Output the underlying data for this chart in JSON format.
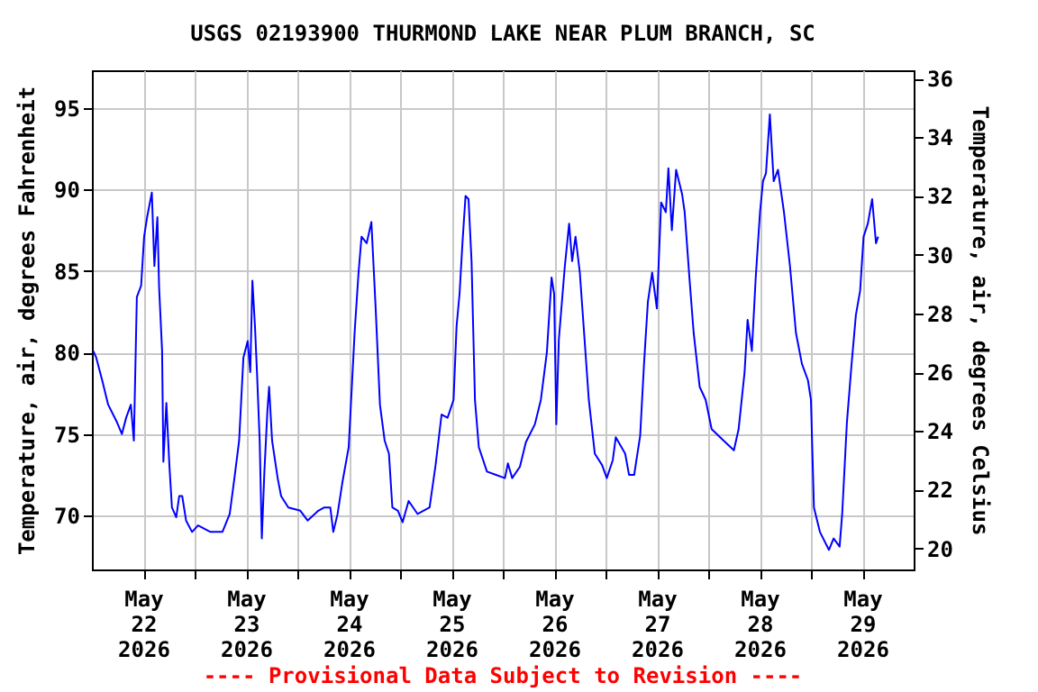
{
  "chart_data": {
    "type": "line",
    "title": "USGS 02193900 THURMOND LAKE NEAR PLUM BRANCH, SC",
    "ylabel": "Temperature, air, degrees Fahrenheit",
    "y2label": "Temperature, air, degrees Celsius",
    "annotations": [
      "---- Provisional Data Subject to Revision ----"
    ],
    "xlim": [
      "2026-05-22T00:00",
      "2026-05-30T00:00"
    ],
    "xticks": [
      {
        "value": "2026-05-22T12:00",
        "label": "May\n22\n2026"
      },
      {
        "value": "2026-05-23T00:00",
        "label": null
      },
      {
        "value": "2026-05-23T12:00",
        "label": "May\n23\n2026"
      },
      {
        "value": "2026-05-24T00:00",
        "label": null
      },
      {
        "value": "2026-05-24T12:00",
        "label": "May\n24\n2026"
      },
      {
        "value": "2026-05-25T00:00",
        "label": null
      },
      {
        "value": "2026-05-25T12:00",
        "label": "May\n25\n2026"
      },
      {
        "value": "2026-05-26T00:00",
        "label": null
      },
      {
        "value": "2026-05-26T12:00",
        "label": "May\n26\n2026"
      },
      {
        "value": "2026-05-27T00:00",
        "label": null
      },
      {
        "value": "2026-05-27T12:00",
        "label": "May\n27\n2026"
      },
      {
        "value": "2026-05-28T00:00",
        "label": null
      },
      {
        "value": "2026-05-28T12:00",
        "label": "May\n28\n2026"
      },
      {
        "value": "2026-05-29T00:00",
        "label": null
      },
      {
        "value": "2026-05-29T12:00",
        "label": "May\n29\n2026"
      }
    ],
    "ylim": [
      66.7,
      97.3
    ],
    "yticks": [
      70,
      75,
      80,
      85,
      90,
      95
    ],
    "y2lim": [
      19.28,
      36.28
    ],
    "y2ticks": [
      20,
      22,
      24,
      26,
      28,
      30,
      32,
      34,
      36
    ],
    "grid": true,
    "marker": "none",
    "line_style": "solid",
    "series": [
      {
        "color": "#0000ff",
        "x": [
          "2026-05-22T00:18",
          "2026-05-22T01:00",
          "2026-05-22T02:24",
          "2026-05-22T03:48",
          "2026-05-22T05:54",
          "2026-05-22T07:00",
          "2026-05-22T08:00",
          "2026-05-22T09:06",
          "2026-05-22T09:48",
          "2026-05-22T10:30",
          "2026-05-22T11:30",
          "2026-05-22T12:12",
          "2026-05-22T12:54",
          "2026-05-22T14:00",
          "2026-05-22T14:36",
          "2026-05-22T15:18",
          "2026-05-22T15:42",
          "2026-05-22T16:24",
          "2026-05-22T16:42",
          "2026-05-22T17:24",
          "2026-05-22T18:06",
          "2026-05-22T18:42",
          "2026-05-22T19:42",
          "2026-05-22T20:24",
          "2026-05-22T21:06",
          "2026-05-22T22:00",
          "2026-05-22T23:24",
          "2026-05-23T00:48",
          "2026-05-23T03:42",
          "2026-05-23T06:30",
          "2026-05-23T08:12",
          "2026-05-23T09:18",
          "2026-05-23T10:24",
          "2026-05-23T11:24",
          "2026-05-23T12:24",
          "2026-05-23T13:00",
          "2026-05-23T13:30",
          "2026-05-23T14:06",
          "2026-05-23T14:36",
          "2026-05-23T15:12",
          "2026-05-23T15:42",
          "2026-05-23T16:18",
          "2026-05-23T17:00",
          "2026-05-23T17:24",
          "2026-05-23T18:06",
          "2026-05-23T19:24",
          "2026-05-23T20:12",
          "2026-05-23T21:54",
          "2026-05-24T00:42",
          "2026-05-24T02:24",
          "2026-05-24T04:54",
          "2026-05-24T06:18",
          "2026-05-24T07:42",
          "2026-05-24T08:24",
          "2026-05-24T09:24",
          "2026-05-24T10:30",
          "2026-05-24T12:00",
          "2026-05-24T13:24",
          "2026-05-24T14:18",
          "2026-05-24T15:00",
          "2026-05-24T16:12",
          "2026-05-24T17:18",
          "2026-05-24T18:18",
          "2026-05-24T19:18",
          "2026-05-24T20:24",
          "2026-05-24T21:24",
          "2026-05-24T22:12",
          "2026-05-24T23:30",
          "2026-05-25T00:36",
          "2026-05-25T02:00",
          "2026-05-25T04:06",
          "2026-05-25T06:54",
          "2026-05-25T08:18",
          "2026-05-25T09:42",
          "2026-05-25T11:06",
          "2026-05-25T12:30",
          "2026-05-25T13:12",
          "2026-05-25T13:54",
          "2026-05-25T14:36",
          "2026-05-25T15:18",
          "2026-05-25T16:00",
          "2026-05-25T16:42",
          "2026-05-25T17:30",
          "2026-05-25T18:24",
          "2026-05-25T20:18",
          "2026-05-25T22:24",
          "2026-05-26T00:30",
          "2026-05-26T01:12",
          "2026-05-26T02:12",
          "2026-05-26T04:00",
          "2026-05-26T05:24",
          "2026-05-26T07:30",
          "2026-05-26T08:54",
          "2026-05-26T10:18",
          "2026-05-26T11:24",
          "2026-05-26T12:00",
          "2026-05-26T12:30",
          "2026-05-26T13:06",
          "2026-05-26T14:30",
          "2026-05-26T15:30",
          "2026-05-26T16:12",
          "2026-05-26T17:00",
          "2026-05-26T18:00",
          "2026-05-26T19:00",
          "2026-05-26T20:06",
          "2026-05-26T21:30",
          "2026-05-26T23:12",
          "2026-05-27T00:18",
          "2026-05-27T01:42",
          "2026-05-27T02:24",
          "2026-05-27T04:36",
          "2026-05-27T05:30",
          "2026-05-27T06:42",
          "2026-05-27T08:06",
          "2026-05-27T09:00",
          "2026-05-27T09:54",
          "2026-05-27T10:54",
          "2026-05-27T12:00",
          "2026-05-27T13:00",
          "2026-05-27T14:06",
          "2026-05-27T14:42",
          "2026-05-27T15:30",
          "2026-05-27T16:30",
          "2026-05-27T17:54",
          "2026-05-27T18:30",
          "2026-05-27T19:36",
          "2026-05-27T20:36",
          "2026-05-27T22:00",
          "2026-05-27T23:24",
          "2026-05-28T00:48",
          "2026-05-28T03:36",
          "2026-05-28T06:00",
          "2026-05-28T07:06",
          "2026-05-28T08:30",
          "2026-05-28T09:12",
          "2026-05-28T10:12",
          "2026-05-28T11:06",
          "2026-05-28T12:06",
          "2026-05-28T12:48",
          "2026-05-28T13:30",
          "2026-05-28T14:24",
          "2026-05-28T15:18",
          "2026-05-28T16:18",
          "2026-05-28T17:42",
          "2026-05-28T19:06",
          "2026-05-28T20:30",
          "2026-05-28T21:54",
          "2026-05-28T23:18",
          "2026-05-29T00:00",
          "2026-05-29T00:42",
          "2026-05-29T02:06",
          "2026-05-29T04:12",
          "2026-05-29T05:18",
          "2026-05-29T06:42",
          "2026-05-29T07:18",
          "2026-05-29T08:24",
          "2026-05-29T09:30",
          "2026-05-29T10:30",
          "2026-05-29T11:30",
          "2026-05-29T12:18",
          "2026-05-29T13:18",
          "2026-05-29T14:18",
          "2026-05-29T15:12",
          "2026-05-29T15:42"
        ],
        "values": [
          80.1,
          79.7,
          78.3,
          76.8,
          75.7,
          75.0,
          76.0,
          76.8,
          74.6,
          83.4,
          84.1,
          87.1,
          88.3,
          89.8,
          85.3,
          88.3,
          84.0,
          80.1,
          73.3,
          76.9,
          73.1,
          70.5,
          69.9,
          71.2,
          71.2,
          69.7,
          69.0,
          69.4,
          69.0,
          69.0,
          70.1,
          72.3,
          74.6,
          79.7,
          80.7,
          78.8,
          84.4,
          81.6,
          78.6,
          74.6,
          68.6,
          72.7,
          76.4,
          77.9,
          74.6,
          72.3,
          71.2,
          70.5,
          70.3,
          69.7,
          70.3,
          70.5,
          70.5,
          69.0,
          70.1,
          72.0,
          74.2,
          81.3,
          84.9,
          87.1,
          86.7,
          88.0,
          82.7,
          76.8,
          74.6,
          73.8,
          70.5,
          70.3,
          69.6,
          70.9,
          70.1,
          70.5,
          73.1,
          76.2,
          76.0,
          77.1,
          81.6,
          83.6,
          86.8,
          89.6,
          89.4,
          85.6,
          77.1,
          74.2,
          72.7,
          72.5,
          72.3,
          73.2,
          72.3,
          73.0,
          74.5,
          75.6,
          77.1,
          80.0,
          84.6,
          83.6,
          75.6,
          80.8,
          85.3,
          87.9,
          85.6,
          87.1,
          84.9,
          81.2,
          77.1,
          73.8,
          73.1,
          72.3,
          73.4,
          74.8,
          73.8,
          72.5,
          72.5,
          74.9,
          79.3,
          83.1,
          84.9,
          82.7,
          89.2,
          88.6,
          91.3,
          87.5,
          91.2,
          89.7,
          88.6,
          84.6,
          81.2,
          77.9,
          77.1,
          75.3,
          74.6,
          74.0,
          75.3,
          78.8,
          82.0,
          80.1,
          84.6,
          88.6,
          90.5,
          91.0,
          94.6,
          90.5,
          91.2,
          88.6,
          85.3,
          81.2,
          79.3,
          78.3,
          77.1,
          70.5,
          69.0,
          67.9,
          68.6,
          68.1,
          70.1,
          75.7,
          79.3,
          82.3,
          83.8,
          87.1,
          87.9,
          89.4,
          86.7,
          87.1
        ]
      }
    ]
  }
}
